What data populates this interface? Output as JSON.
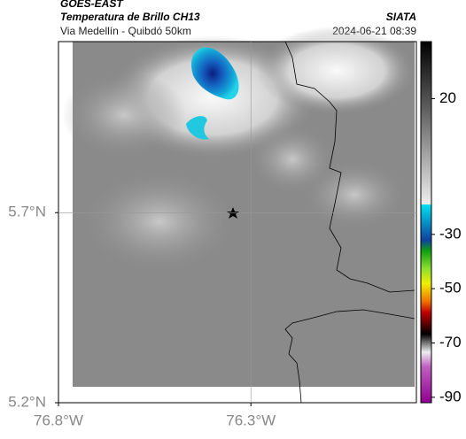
{
  "header": {
    "title": "GOES-EAST",
    "subtitle": "Temperatura de Brillo CH13",
    "region": "Via Medellín - Quibdó 50km",
    "source": "SIATA",
    "datetime": "2024-06-21 08:39"
  },
  "map": {
    "xlim": [
      -76.8,
      -75.87
    ],
    "ylim": [
      5.2,
      6.15
    ],
    "xticks": [
      {
        "value": -76.8,
        "label": "76.8°W"
      },
      {
        "value": -76.3,
        "label": "76.3°W"
      }
    ],
    "yticks": [
      {
        "value": 5.7,
        "label": "5.7°N"
      },
      {
        "value": 5.2,
        "label": "5.2°N"
      }
    ]
  },
  "colorbar": {
    "lim": [
      -92,
      41
    ],
    "ticks": [
      20,
      -30,
      -50,
      -70,
      -90
    ]
  }
}
